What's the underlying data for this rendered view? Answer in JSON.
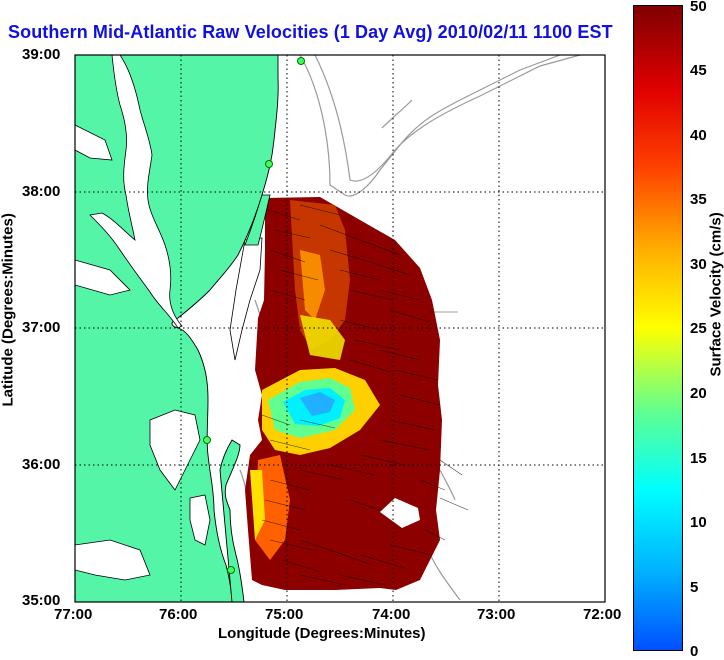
{
  "title": "Southern Mid-Atlantic Raw Velocities (1 Day Avg) 2010/02/11 1100 EST",
  "map": {
    "x_label": "Longitude (Degrees:Minutes)",
    "y_label": "Latitude (Degrees:Minutes)",
    "x_ticks": [
      "77:00",
      "76:00",
      "75:00",
      "74:00",
      "73:00",
      "72:00"
    ],
    "y_ticks": [
      "39:00",
      "38:00",
      "37:00",
      "36:00",
      "35:00"
    ],
    "lon_range": [
      -77,
      -72
    ],
    "lat_range": [
      35,
      39
    ],
    "colors": {
      "land": "#55f5a8",
      "coast_line": "#000000",
      "bathymetry": "#9a9a9a",
      "grid": "#000000"
    }
  },
  "colorbar": {
    "label": "Surface Velocity (cm/s)",
    "ticks": [
      "50",
      "45",
      "40",
      "35",
      "30",
      "25",
      "20",
      "15",
      "10",
      "5",
      "0"
    ],
    "range": [
      0,
      50
    ],
    "colors": [
      "#0050ff",
      "#00b0ff",
      "#00ffff",
      "#60ff90",
      "#ffff00",
      "#ffb000",
      "#ff4000",
      "#e00000",
      "#800000"
    ]
  }
}
